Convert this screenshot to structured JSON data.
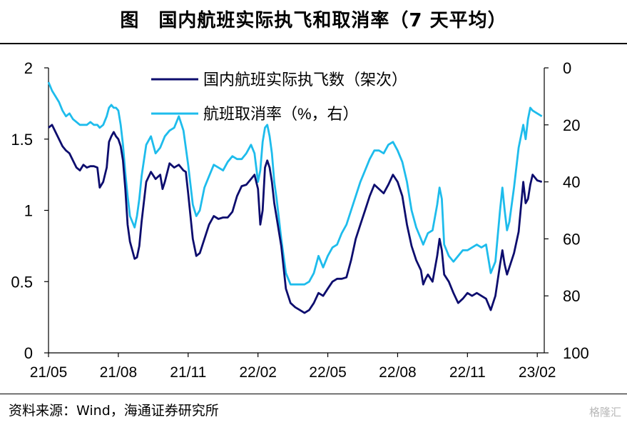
{
  "title": "图　国内航班实际执飞和取消率（7 天平均）",
  "source": "资料来源：Wind，海通证券研究所",
  "watermark": "格隆汇",
  "chart_data": {
    "type": "line",
    "x_ticks": [
      "21/05",
      "21/08",
      "21/11",
      "22/02",
      "22/05",
      "22/08",
      "22/11",
      "23/02"
    ],
    "y_left": {
      "ticks": [
        "0",
        "0.5",
        "1",
        "1.5",
        "2"
      ],
      "range": [
        0,
        2
      ]
    },
    "y_right": {
      "ticks": [
        "0",
        "20",
        "40",
        "60",
        "80",
        "100"
      ],
      "range": [
        0,
        100
      ],
      "inverted": true
    },
    "x_range_months": [
      0,
      21.3
    ],
    "legend_position": "top-center",
    "series": [
      {
        "name": "国内航班实际执飞数（架次）",
        "axis": "left",
        "color": "#0d0d6e",
        "points": [
          [
            0.0,
            1.58
          ],
          [
            0.15,
            1.6
          ],
          [
            0.3,
            1.55
          ],
          [
            0.45,
            1.5
          ],
          [
            0.6,
            1.45
          ],
          [
            0.75,
            1.42
          ],
          [
            0.9,
            1.4
          ],
          [
            1.05,
            1.35
          ],
          [
            1.2,
            1.3
          ],
          [
            1.35,
            1.28
          ],
          [
            1.5,
            1.32
          ],
          [
            1.65,
            1.3
          ],
          [
            1.8,
            1.31
          ],
          [
            1.95,
            1.31
          ],
          [
            2.1,
            1.3
          ],
          [
            2.2,
            1.16
          ],
          [
            2.35,
            1.2
          ],
          [
            2.5,
            1.3
          ],
          [
            2.6,
            1.48
          ],
          [
            2.7,
            1.52
          ],
          [
            2.8,
            1.55
          ],
          [
            2.9,
            1.52
          ],
          [
            3.0,
            1.5
          ],
          [
            3.1,
            1.45
          ],
          [
            3.2,
            1.35
          ],
          [
            3.3,
            1.15
          ],
          [
            3.4,
            0.9
          ],
          [
            3.5,
            0.78
          ],
          [
            3.6,
            0.72
          ],
          [
            3.7,
            0.66
          ],
          [
            3.8,
            0.67
          ],
          [
            3.9,
            0.75
          ],
          [
            4.0,
            0.92
          ],
          [
            4.2,
            1.2
          ],
          [
            4.4,
            1.27
          ],
          [
            4.6,
            1.22
          ],
          [
            4.8,
            1.25
          ],
          [
            4.9,
            1.15
          ],
          [
            5.0,
            1.2
          ],
          [
            5.2,
            1.33
          ],
          [
            5.4,
            1.3
          ],
          [
            5.6,
            1.32
          ],
          [
            5.8,
            1.28
          ],
          [
            5.9,
            1.27
          ],
          [
            6.0,
            1.12
          ],
          [
            6.2,
            0.8
          ],
          [
            6.35,
            0.68
          ],
          [
            6.5,
            0.7
          ],
          [
            6.7,
            0.8
          ],
          [
            6.9,
            0.9
          ],
          [
            7.1,
            0.96
          ],
          [
            7.3,
            0.94
          ],
          [
            7.5,
            0.95
          ],
          [
            7.7,
            0.95
          ],
          [
            7.9,
            0.99
          ],
          [
            8.1,
            1.1
          ],
          [
            8.3,
            1.17
          ],
          [
            8.5,
            1.18
          ],
          [
            8.7,
            1.22
          ],
          [
            8.85,
            1.25
          ],
          [
            9.0,
            1.15
          ],
          [
            9.1,
            0.9
          ],
          [
            9.2,
            1.0
          ],
          [
            9.3,
            1.3
          ],
          [
            9.4,
            1.35
          ],
          [
            9.5,
            1.3
          ],
          [
            9.6,
            1.2
          ],
          [
            9.7,
            1.05
          ],
          [
            9.8,
            0.95
          ],
          [
            10.0,
            0.75
          ],
          [
            10.2,
            0.45
          ],
          [
            10.4,
            0.35
          ],
          [
            10.6,
            0.32
          ],
          [
            10.8,
            0.3
          ],
          [
            11.0,
            0.28
          ],
          [
            11.2,
            0.3
          ],
          [
            11.4,
            0.35
          ],
          [
            11.6,
            0.42
          ],
          [
            11.8,
            0.4
          ],
          [
            12.0,
            0.45
          ],
          [
            12.2,
            0.5
          ],
          [
            12.4,
            0.52
          ],
          [
            12.6,
            0.52
          ],
          [
            12.8,
            0.53
          ],
          [
            13.0,
            0.65
          ],
          [
            13.2,
            0.8
          ],
          [
            13.4,
            0.9
          ],
          [
            13.6,
            1.0
          ],
          [
            13.8,
            1.1
          ],
          [
            14.0,
            1.18
          ],
          [
            14.2,
            1.15
          ],
          [
            14.4,
            1.12
          ],
          [
            14.6,
            1.18
          ],
          [
            14.8,
            1.25
          ],
          [
            15.0,
            1.2
          ],
          [
            15.2,
            1.1
          ],
          [
            15.4,
            0.9
          ],
          [
            15.6,
            0.75
          ],
          [
            15.8,
            0.65
          ],
          [
            16.0,
            0.58
          ],
          [
            16.1,
            0.48
          ],
          [
            16.2,
            0.52
          ],
          [
            16.3,
            0.55
          ],
          [
            16.5,
            0.5
          ],
          [
            16.7,
            0.68
          ],
          [
            16.8,
            0.8
          ],
          [
            16.9,
            0.72
          ],
          [
            17.0,
            0.55
          ],
          [
            17.2,
            0.5
          ],
          [
            17.4,
            0.42
          ],
          [
            17.6,
            0.35
          ],
          [
            17.8,
            0.38
          ],
          [
            18.0,
            0.42
          ],
          [
            18.2,
            0.4
          ],
          [
            18.4,
            0.42
          ],
          [
            18.6,
            0.4
          ],
          [
            18.8,
            0.38
          ],
          [
            19.0,
            0.3
          ],
          [
            19.2,
            0.4
          ],
          [
            19.4,
            0.62
          ],
          [
            19.5,
            0.72
          ],
          [
            19.6,
            0.62
          ],
          [
            19.7,
            0.55
          ],
          [
            19.8,
            0.6
          ],
          [
            20.0,
            0.7
          ],
          [
            20.2,
            0.85
          ],
          [
            20.4,
            1.2
          ],
          [
            20.5,
            1.05
          ],
          [
            20.6,
            1.08
          ],
          [
            20.7,
            1.18
          ],
          [
            20.8,
            1.25
          ],
          [
            21.0,
            1.21
          ],
          [
            21.2,
            1.2
          ]
        ]
      },
      {
        "name": "航班取消率（%，右）",
        "axis": "right",
        "color": "#1ebcec",
        "points": [
          [
            0.0,
            5
          ],
          [
            0.15,
            8
          ],
          [
            0.3,
            10
          ],
          [
            0.45,
            12
          ],
          [
            0.6,
            15
          ],
          [
            0.75,
            17
          ],
          [
            0.9,
            16
          ],
          [
            1.05,
            18
          ],
          [
            1.2,
            19
          ],
          [
            1.35,
            20
          ],
          [
            1.5,
            20
          ],
          [
            1.65,
            20
          ],
          [
            1.8,
            19
          ],
          [
            1.95,
            20
          ],
          [
            2.1,
            20
          ],
          [
            2.2,
            21
          ],
          [
            2.35,
            20
          ],
          [
            2.5,
            17
          ],
          [
            2.6,
            14
          ],
          [
            2.7,
            13
          ],
          [
            2.8,
            14
          ],
          [
            2.9,
            14
          ],
          [
            3.0,
            15
          ],
          [
            3.1,
            20
          ],
          [
            3.2,
            27
          ],
          [
            3.3,
            37
          ],
          [
            3.4,
            45
          ],
          [
            3.5,
            52
          ],
          [
            3.6,
            54
          ],
          [
            3.7,
            56
          ],
          [
            3.8,
            52
          ],
          [
            3.9,
            46
          ],
          [
            4.0,
            38
          ],
          [
            4.2,
            27
          ],
          [
            4.4,
            24
          ],
          [
            4.6,
            30
          ],
          [
            4.8,
            28
          ],
          [
            5.0,
            24
          ],
          [
            5.2,
            22
          ],
          [
            5.4,
            21
          ],
          [
            5.6,
            17
          ],
          [
            5.8,
            22
          ],
          [
            6.0,
            34
          ],
          [
            6.2,
            48
          ],
          [
            6.35,
            52
          ],
          [
            6.5,
            50
          ],
          [
            6.7,
            42
          ],
          [
            6.9,
            38
          ],
          [
            7.1,
            34
          ],
          [
            7.3,
            35
          ],
          [
            7.5,
            36
          ],
          [
            7.7,
            33
          ],
          [
            7.9,
            31
          ],
          [
            8.1,
            32
          ],
          [
            8.3,
            32
          ],
          [
            8.5,
            30
          ],
          [
            8.7,
            27
          ],
          [
            8.85,
            30
          ],
          [
            9.0,
            40
          ],
          [
            9.1,
            36
          ],
          [
            9.2,
            26
          ],
          [
            9.3,
            21
          ],
          [
            9.4,
            20
          ],
          [
            9.5,
            24
          ],
          [
            9.6,
            30
          ],
          [
            9.7,
            40
          ],
          [
            9.8,
            46
          ],
          [
            10.0,
            60
          ],
          [
            10.2,
            72
          ],
          [
            10.4,
            76
          ],
          [
            10.6,
            76
          ],
          [
            10.8,
            76
          ],
          [
            11.0,
            76
          ],
          [
            11.2,
            75
          ],
          [
            11.4,
            72
          ],
          [
            11.6,
            66
          ],
          [
            11.8,
            70
          ],
          [
            12.0,
            66
          ],
          [
            12.2,
            63
          ],
          [
            12.4,
            62
          ],
          [
            12.6,
            58
          ],
          [
            12.8,
            55
          ],
          [
            13.0,
            50
          ],
          [
            13.2,
            45
          ],
          [
            13.4,
            40
          ],
          [
            13.6,
            36
          ],
          [
            13.8,
            32
          ],
          [
            14.0,
            29
          ],
          [
            14.2,
            29
          ],
          [
            14.4,
            30
          ],
          [
            14.6,
            27
          ],
          [
            14.8,
            26
          ],
          [
            15.0,
            29
          ],
          [
            15.2,
            33
          ],
          [
            15.4,
            40
          ],
          [
            15.6,
            50
          ],
          [
            15.8,
            56
          ],
          [
            16.0,
            60
          ],
          [
            16.1,
            62
          ],
          [
            16.2,
            60
          ],
          [
            16.3,
            58
          ],
          [
            16.5,
            57
          ],
          [
            16.7,
            48
          ],
          [
            16.8,
            42
          ],
          [
            16.9,
            46
          ],
          [
            17.0,
            62
          ],
          [
            17.2,
            66
          ],
          [
            17.4,
            68
          ],
          [
            17.6,
            66
          ],
          [
            17.8,
            64
          ],
          [
            18.0,
            64
          ],
          [
            18.2,
            63
          ],
          [
            18.4,
            62
          ],
          [
            18.6,
            63
          ],
          [
            18.8,
            62
          ],
          [
            19.0,
            72
          ],
          [
            19.2,
            68
          ],
          [
            19.4,
            50
          ],
          [
            19.5,
            42
          ],
          [
            19.6,
            50
          ],
          [
            19.7,
            57
          ],
          [
            19.8,
            54
          ],
          [
            20.0,
            42
          ],
          [
            20.2,
            28
          ],
          [
            20.4,
            20
          ],
          [
            20.5,
            25
          ],
          [
            20.6,
            18
          ],
          [
            20.7,
            14
          ],
          [
            20.8,
            15
          ],
          [
            21.0,
            16
          ],
          [
            21.2,
            17
          ]
        ]
      }
    ]
  }
}
